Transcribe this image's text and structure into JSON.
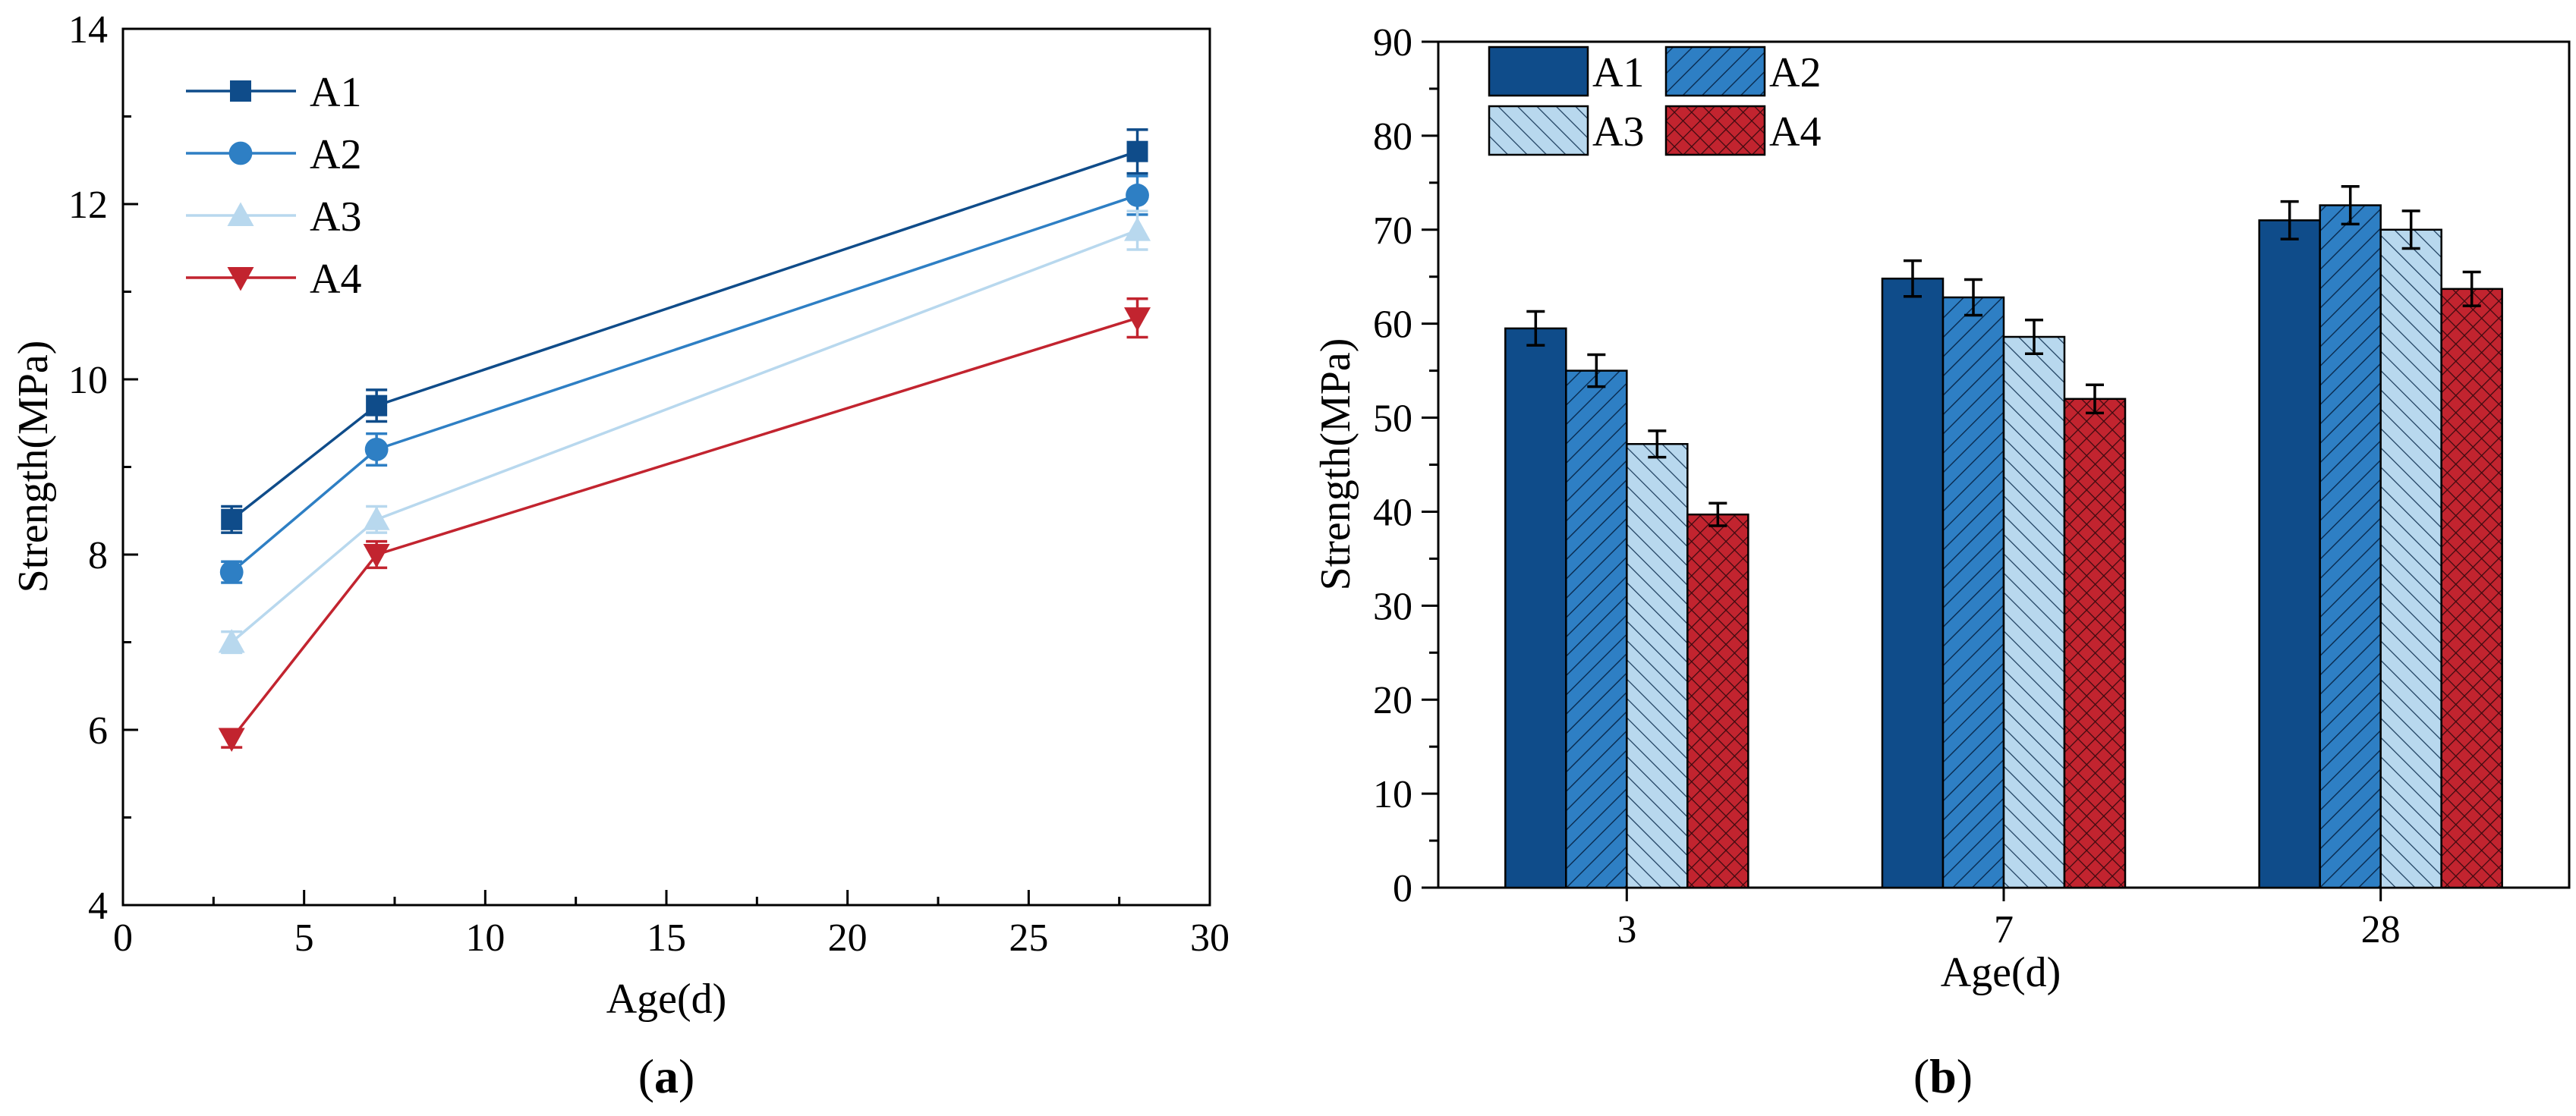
{
  "colors": {
    "A1": "#0f4c8a",
    "A2": "#2e7fc4",
    "A3": "#b8d8ee",
    "A4": "#c2242f",
    "axis": "#000000"
  },
  "chart_data": [
    {
      "type": "line",
      "panel_label": "a",
      "panel_paren_open": "(",
      "panel_paren_close": ")",
      "xlabel": "Age(d)",
      "ylabel": "Strength(MPa)",
      "xlim": [
        0,
        30
      ],
      "ylim": [
        4,
        14
      ],
      "xticks": [
        0,
        5,
        10,
        15,
        20,
        25,
        30
      ],
      "yticks": [
        4,
        6,
        8,
        10,
        12,
        14
      ],
      "x": [
        3,
        7,
        28
      ],
      "series": [
        {
          "name": "A1",
          "marker": "square",
          "values": [
            8.4,
            9.7,
            12.6
          ],
          "errors": [
            0.15,
            0.18,
            0.25
          ]
        },
        {
          "name": "A2",
          "marker": "circle",
          "values": [
            7.8,
            9.2,
            12.1
          ],
          "errors": [
            0.12,
            0.18,
            0.22
          ]
        },
        {
          "name": "A3",
          "marker": "triangle-up",
          "values": [
            7.0,
            8.4,
            11.7
          ],
          "errors": [
            0.12,
            0.15,
            0.22
          ]
        },
        {
          "name": "A4",
          "marker": "triangle-down",
          "values": [
            5.9,
            8.0,
            10.7
          ],
          "errors": [
            0.1,
            0.15,
            0.22
          ]
        }
      ],
      "legend": "top-left"
    },
    {
      "type": "bar",
      "panel_label": "b",
      "panel_paren_open": "(",
      "panel_paren_close": ")",
      "xlabel": "Age(d)",
      "ylabel": "Strength(MPa)",
      "ylim": [
        0,
        90
      ],
      "yticks": [
        0,
        10,
        20,
        30,
        40,
        50,
        60,
        70,
        80,
        90
      ],
      "categories": [
        "3",
        "7",
        "28"
      ],
      "series": [
        {
          "name": "A1",
          "pattern": "solid",
          "values": [
            59.5,
            64.8,
            71.0
          ],
          "errors": [
            1.8,
            1.9,
            2.0
          ]
        },
        {
          "name": "A2",
          "pattern": "hatch-forward",
          "values": [
            55.0,
            62.8,
            72.6
          ],
          "errors": [
            1.7,
            1.9,
            2.0
          ]
        },
        {
          "name": "A3",
          "pattern": "hatch-back",
          "values": [
            47.2,
            58.6,
            70.0
          ],
          "errors": [
            1.4,
            1.8,
            2.0
          ]
        },
        {
          "name": "A4",
          "pattern": "crosshatch",
          "values": [
            39.7,
            52.0,
            63.7
          ],
          "errors": [
            1.2,
            1.5,
            1.8
          ]
        }
      ],
      "legend": "top-left"
    }
  ]
}
